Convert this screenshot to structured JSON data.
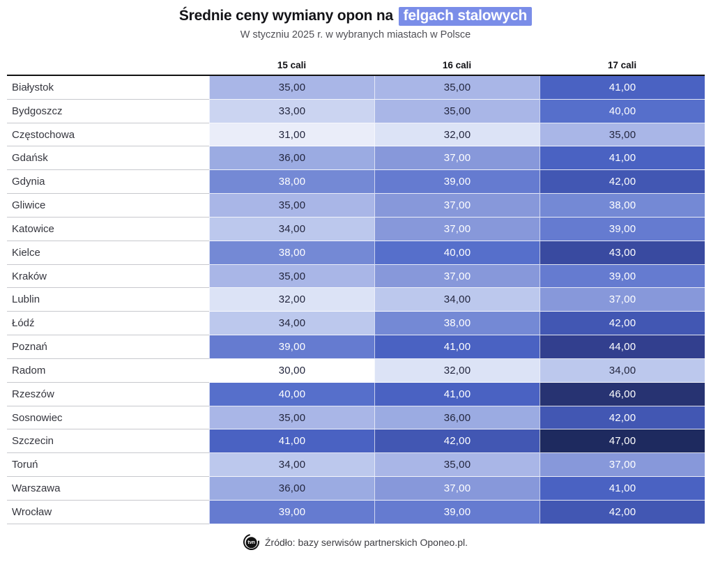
{
  "header": {
    "title_prefix": "Średnie ceny wymiany opon na ",
    "title_highlight": "felgach stalowych",
    "highlight_color": "#7a8de8",
    "subtitle": "W styczniu 2025 r. w wybranych miastach w Polsce"
  },
  "table": {
    "columns": [
      "15 cali",
      "16 cali",
      "17 cali"
    ],
    "rows": [
      {
        "city": "Białystok",
        "values": [
          "35,00",
          "35,00",
          "41,00"
        ]
      },
      {
        "city": "Bydgoszcz",
        "values": [
          "33,00",
          "35,00",
          "40,00"
        ]
      },
      {
        "city": "Częstochowa",
        "values": [
          "31,00",
          "32,00",
          "35,00"
        ]
      },
      {
        "city": "Gdańsk",
        "values": [
          "36,00",
          "37,00",
          "41,00"
        ]
      },
      {
        "city": "Gdynia",
        "values": [
          "38,00",
          "39,00",
          "42,00"
        ]
      },
      {
        "city": "Gliwice",
        "values": [
          "35,00",
          "37,00",
          "38,00"
        ]
      },
      {
        "city": "Katowice",
        "values": [
          "34,00",
          "37,00",
          "39,00"
        ]
      },
      {
        "city": "Kielce",
        "values": [
          "38,00",
          "40,00",
          "43,00"
        ]
      },
      {
        "city": "Kraków",
        "values": [
          "35,00",
          "37,00",
          "39,00"
        ]
      },
      {
        "city": "Lublin",
        "values": [
          "32,00",
          "34,00",
          "37,00"
        ]
      },
      {
        "city": "Łódź",
        "values": [
          "34,00",
          "38,00",
          "42,00"
        ]
      },
      {
        "city": "Poznań",
        "values": [
          "39,00",
          "41,00",
          "44,00"
        ]
      },
      {
        "city": "Radom",
        "values": [
          "30,00",
          "32,00",
          "34,00"
        ]
      },
      {
        "city": "Rzeszów",
        "values": [
          "40,00",
          "41,00",
          "46,00"
        ]
      },
      {
        "city": "Sosnowiec",
        "values": [
          "35,00",
          "36,00",
          "42,00"
        ]
      },
      {
        "city": "Szczecin",
        "values": [
          "41,00",
          "42,00",
          "47,00"
        ]
      },
      {
        "city": "Toruń",
        "values": [
          "34,00",
          "35,00",
          "37,00"
        ]
      },
      {
        "city": "Warszawa",
        "values": [
          "36,00",
          "37,00",
          "41,00"
        ]
      },
      {
        "city": "Wrocław",
        "values": [
          "39,00",
          "39,00",
          "42,00"
        ]
      }
    ],
    "heatmap": {
      "white_text_min": 37,
      "dark_text": "#23263e",
      "light_text": "#ffffff",
      "colors": {
        "30": "#ffffff",
        "31": "#eaedf9",
        "32": "#dce3f6",
        "33": "#cbd4f1",
        "34": "#bcc8ed",
        "35": "#a9b6e7",
        "36": "#9babe2",
        "37": "#8798da",
        "38": "#7489d5",
        "39": "#657bd0",
        "40": "#566fcb",
        "41": "#4a62c2",
        "42": "#4257b3",
        "43": "#394aa0",
        "44": "#323f8e",
        "46": "#273372",
        "47": "#1e2a5f"
      }
    }
  },
  "footer": {
    "logo_text": "tvn",
    "source": "Źródło: bazy serwisów partnerskich Oponeo.pl."
  },
  "chart_data": {
    "type": "heatmap",
    "title": "Średnie ceny wymiany opon na felgach stalowych",
    "subtitle": "W styczniu 2025 r. w wybranych miastach w Polsce",
    "columns": [
      "15 cali",
      "16 cali",
      "17 cali"
    ],
    "categories": [
      "Białystok",
      "Bydgoszcz",
      "Częstochowa",
      "Gdańsk",
      "Gdynia",
      "Gliwice",
      "Katowice",
      "Kielce",
      "Kraków",
      "Lublin",
      "Łódź",
      "Poznań",
      "Radom",
      "Rzeszów",
      "Sosnowiec",
      "Szczecin",
      "Toruń",
      "Warszawa",
      "Wrocław"
    ],
    "values": [
      [
        35,
        35,
        41
      ],
      [
        33,
        35,
        40
      ],
      [
        31,
        32,
        35
      ],
      [
        36,
        37,
        41
      ],
      [
        38,
        39,
        42
      ],
      [
        35,
        37,
        38
      ],
      [
        34,
        37,
        39
      ],
      [
        38,
        40,
        43
      ],
      [
        35,
        37,
        39
      ],
      [
        32,
        34,
        37
      ],
      [
        34,
        38,
        42
      ],
      [
        39,
        41,
        44
      ],
      [
        30,
        32,
        34
      ],
      [
        40,
        41,
        46
      ],
      [
        35,
        36,
        42
      ],
      [
        41,
        42,
        47
      ],
      [
        34,
        35,
        37
      ],
      [
        36,
        37,
        41
      ],
      [
        39,
        39,
        42
      ]
    ],
    "value_range": [
      30,
      47
    ],
    "color_range": [
      "#ffffff",
      "#1e2a5f"
    ],
    "source": "Źródło: bazy serwisów partnerskich Oponeo.pl."
  }
}
